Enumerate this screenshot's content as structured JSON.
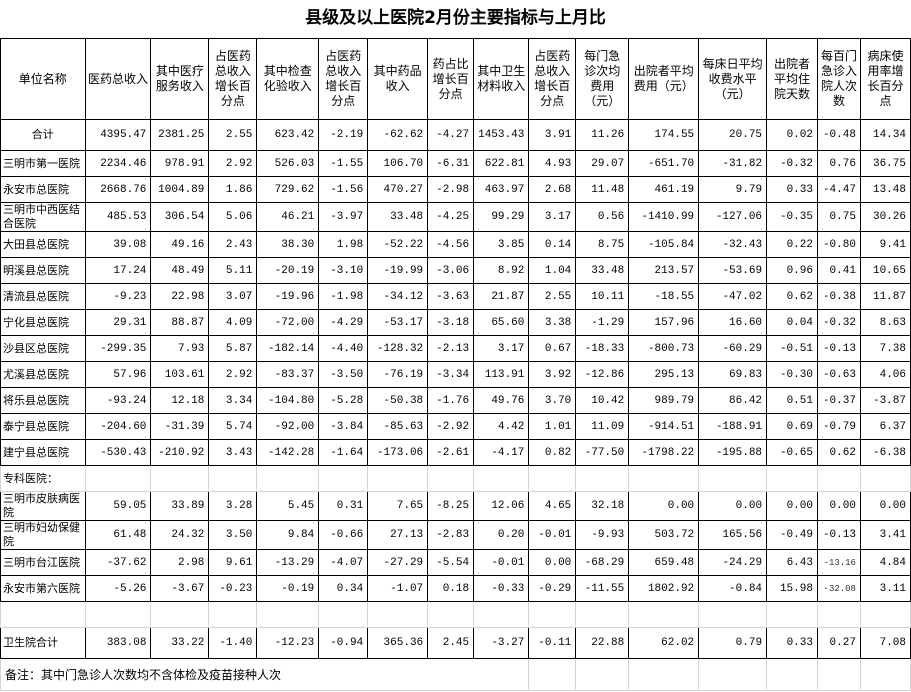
{
  "title": "县级及以上医院2月份主要指标与上月比",
  "headers": [
    "单位名称",
    "医药总收入",
    "其中医疗服务收入",
    "占医药总收入增长百分点",
    "其中检查化验收入",
    "占医药总收入增长百分点",
    "其中药品收入",
    "药占比增长百分点",
    "其中卫生材料收入",
    "占医药总收入增长百分点",
    "每门急诊次均费用（元）",
    "出院者平均费用（元）",
    "每床日平均收费水平（元）",
    "出院者平均住院天数",
    "每百门急诊入院人次数",
    "病床使用率增长百分点"
  ],
  "rows": [
    {
      "name": "合计",
      "values": [
        "4395.47",
        "2381.25",
        "2.55",
        "623.42",
        "-2.19",
        "-62.62",
        "-4.27",
        "1453.43",
        "3.91",
        "11.26",
        "174.55",
        "20.75",
        "0.02",
        "-0.48",
        "14.34"
      ]
    },
    {
      "name": "三明市第一医院",
      "values": [
        "2234.46",
        "978.91",
        "2.92",
        "526.03",
        "-1.55",
        "106.70",
        "-6.31",
        "622.81",
        "4.93",
        "29.07",
        "-651.70",
        "-31.82",
        "-0.32",
        "0.76",
        "36.75"
      ]
    },
    {
      "name": "永安市总医院",
      "values": [
        "2668.76",
        "1004.89",
        "1.86",
        "729.62",
        "-1.56",
        "470.27",
        "-2.98",
        "463.97",
        "2.68",
        "11.48",
        "461.19",
        "9.79",
        "0.33",
        "-4.47",
        "13.48"
      ]
    },
    {
      "name": "三明市中西医结合医院",
      "values": [
        "485.53",
        "306.54",
        "5.06",
        "46.21",
        "-3.97",
        "33.48",
        "-4.25",
        "99.29",
        "3.17",
        "0.56",
        "-1410.99",
        "-127.06",
        "-0.35",
        "0.75",
        "30.26"
      ]
    },
    {
      "name": "大田县总医院",
      "values": [
        "39.08",
        "49.16",
        "2.43",
        "38.30",
        "1.98",
        "-52.22",
        "-4.56",
        "3.85",
        "0.14",
        "8.75",
        "-105.84",
        "-32.43",
        "0.22",
        "-0.80",
        "9.41"
      ]
    },
    {
      "name": "明溪县总医院",
      "values": [
        "17.24",
        "48.49",
        "5.11",
        "-20.19",
        "-3.10",
        "-19.99",
        "-3.06",
        "8.92",
        "1.04",
        "33.48",
        "213.57",
        "-53.69",
        "0.96",
        "0.41",
        "10.65"
      ]
    },
    {
      "name": "清流县总医院",
      "values": [
        "-9.23",
        "22.98",
        "3.07",
        "-19.96",
        "-1.98",
        "-34.12",
        "-3.63",
        "21.87",
        "2.55",
        "10.11",
        "-18.55",
        "-47.02",
        "0.62",
        "-0.38",
        "11.87"
      ]
    },
    {
      "name": "宁化县总医院",
      "values": [
        "29.31",
        "88.87",
        "4.09",
        "-72.00",
        "-4.29",
        "-53.17",
        "-3.18",
        "65.60",
        "3.38",
        "-1.29",
        "157.96",
        "16.60",
        "0.04",
        "-0.32",
        "8.63"
      ]
    },
    {
      "name": "沙县区总医院",
      "values": [
        "-299.35",
        "7.93",
        "5.87",
        "-182.14",
        "-4.40",
        "-128.32",
        "-2.13",
        "3.17",
        "0.67",
        "-18.33",
        "-800.73",
        "-60.29",
        "-0.51",
        "-0.13",
        "7.38"
      ]
    },
    {
      "name": "尤溪县总医院",
      "values": [
        "57.96",
        "103.61",
        "2.92",
        "-83.37",
        "-3.50",
        "-76.19",
        "-3.34",
        "113.91",
        "3.92",
        "-12.86",
        "295.13",
        "69.83",
        "-0.30",
        "-0.63",
        "4.06"
      ]
    },
    {
      "name": "将乐县总医院",
      "values": [
        "-93.24",
        "12.18",
        "3.34",
        "-104.80",
        "-5.28",
        "-50.38",
        "-1.76",
        "49.76",
        "3.70",
        "10.42",
        "989.79",
        "86.42",
        "0.51",
        "-0.37",
        "-3.87"
      ]
    },
    {
      "name": "泰宁县总医院",
      "values": [
        "-204.60",
        "-31.39",
        "5.74",
        "-92.00",
        "-3.84",
        "-85.63",
        "-2.92",
        "4.42",
        "1.01",
        "11.09",
        "-914.51",
        "-188.91",
        "0.69",
        "-0.79",
        "6.37"
      ]
    },
    {
      "name": "建宁县总医院",
      "values": [
        "-530.43",
        "-210.92",
        "3.43",
        "-142.28",
        "-1.64",
        "-173.06",
        "-2.61",
        "-4.17",
        "0.82",
        "-77.50",
        "-1798.22",
        "-195.88",
        "-0.65",
        "0.62",
        "-6.38"
      ]
    }
  ],
  "specialty_label": "专科医院：",
  "specialty_rows": [
    {
      "name": "三明市皮肤病医院",
      "values": [
        "59.05",
        "33.89",
        "3.28",
        "5.45",
        "0.31",
        "7.65",
        "-8.25",
        "12.06",
        "4.65",
        "32.18",
        "0.00",
        "0.00",
        "0.00",
        "0.00",
        "0.00"
      ]
    },
    {
      "name": "三明市妇幼保健院",
      "values": [
        "61.48",
        "24.32",
        "3.50",
        "9.84",
        "-0.66",
        "27.13",
        "-2.83",
        "0.20",
        "-0.01",
        "-9.93",
        "503.72",
        "165.56",
        "-0.49",
        "-0.13",
        "3.41"
      ]
    },
    {
      "name": "三明市台江医院",
      "values": [
        "-37.62",
        "2.98",
        "9.61",
        "-13.29",
        "-4.07",
        "-27.29",
        "-5.54",
        "-0.01",
        "0.00",
        "-68.29",
        "659.48",
        "-24.29",
        "6.43",
        "-13.16",
        "4.84"
      ]
    },
    {
      "name": "永安市第六医院",
      "values": [
        "-5.26",
        "-3.67",
        "-0.23",
        "-0.19",
        "0.34",
        "-1.07",
        "0.18",
        "-0.33",
        "-0.29",
        "-11.55",
        "1802.92",
        "-0.84",
        "15.98",
        "-32.08",
        "3.11"
      ]
    }
  ],
  "township_row": {
    "name": "卫生院合计",
    "values": [
      "383.08",
      "33.22",
      "-1.40",
      "-12.23",
      "-0.94",
      "365.36",
      "2.45",
      "-3.27",
      "-0.11",
      "22.88",
      "62.02",
      "0.79",
      "0.33",
      "0.27",
      "7.08"
    ]
  },
  "note": "备注：其中门急诊人次数均不含体检及疫苗接种人次"
}
